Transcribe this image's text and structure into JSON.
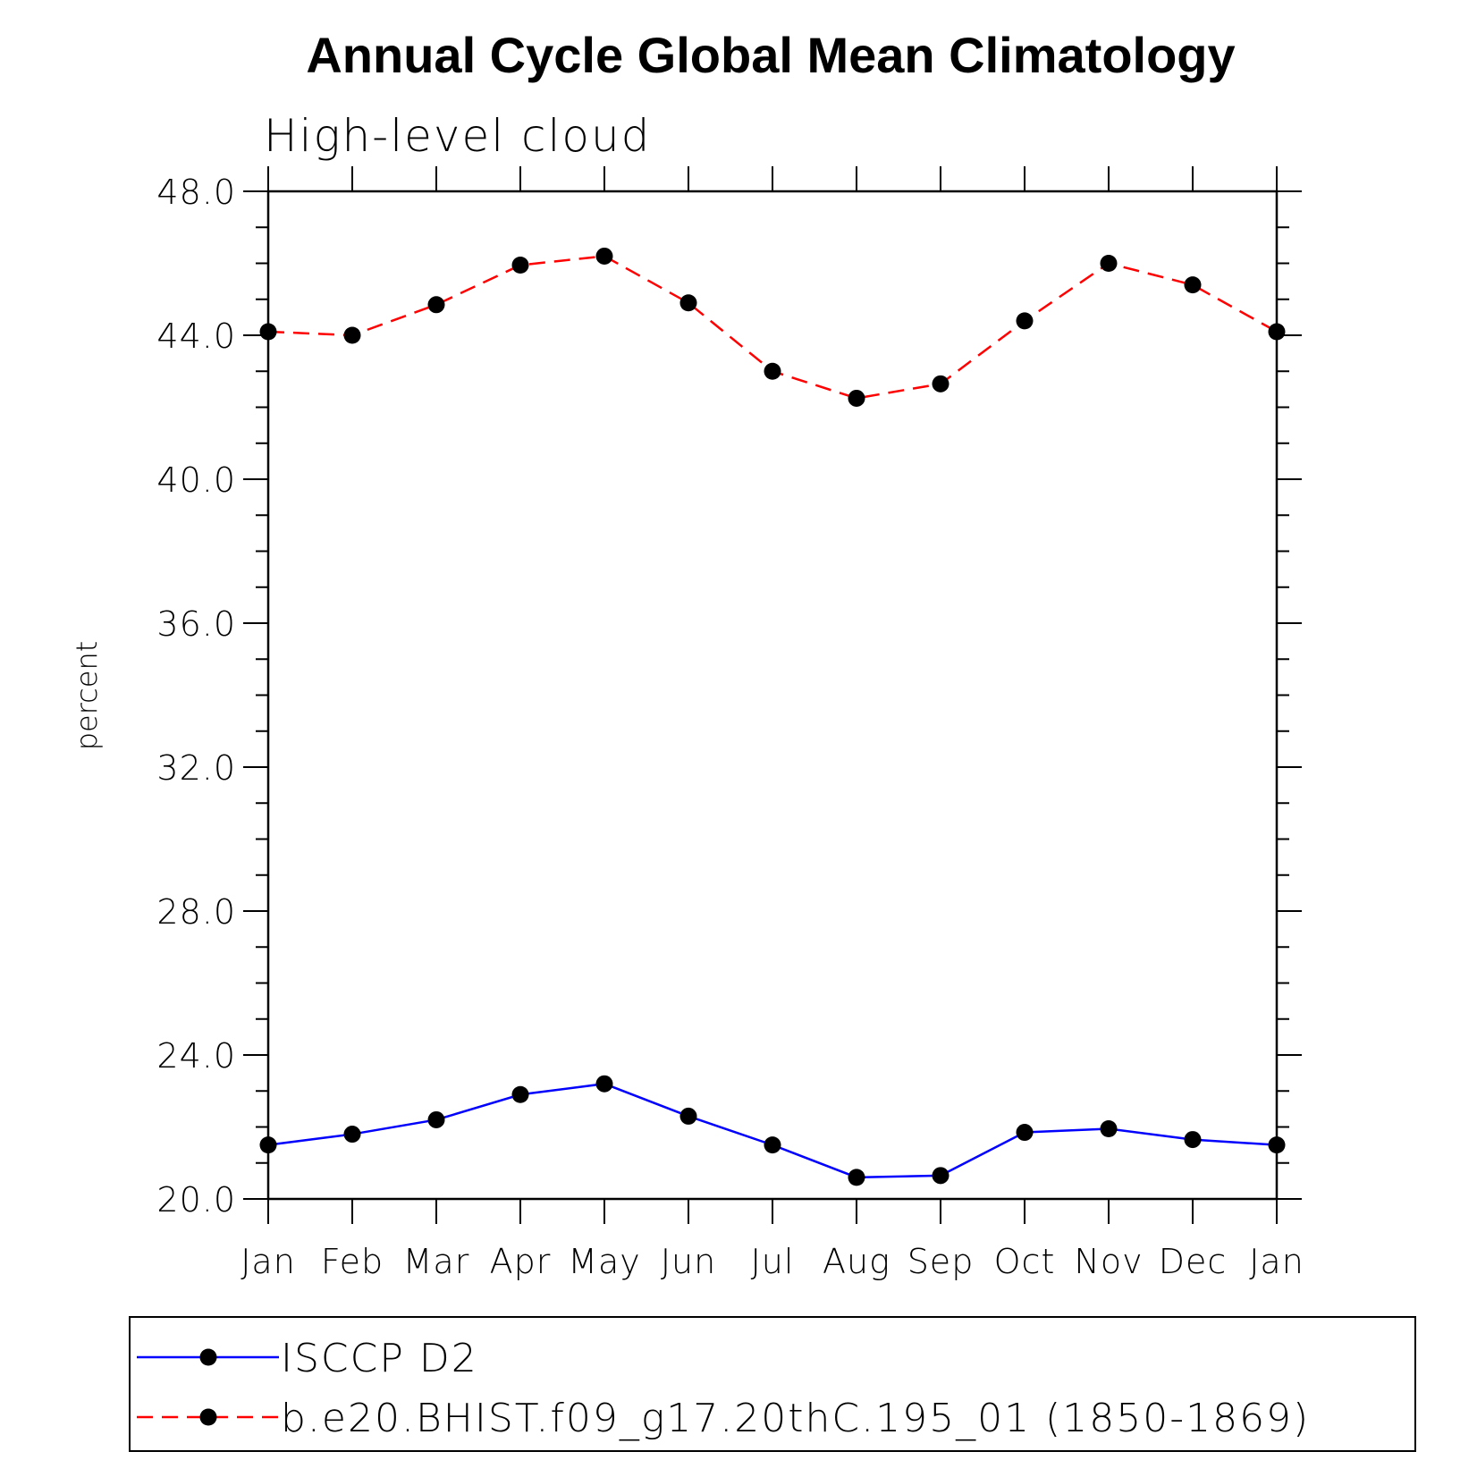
{
  "chart_data": {
    "type": "line",
    "title": "Annual Cycle Global Mean Climatology",
    "subtitle": "High-level cloud",
    "xlabel": "",
    "ylabel": "percent",
    "categories": [
      "Jan",
      "Feb",
      "Mar",
      "Apr",
      "May",
      "Jun",
      "Jul",
      "Aug",
      "Sep",
      "Oct",
      "Nov",
      "Dec",
      "Jan"
    ],
    "ylim": [
      20.0,
      48.0
    ],
    "yticks": [
      "20.0",
      "24.0",
      "28.0",
      "32.0",
      "36.0",
      "40.0",
      "44.0",
      "48.0"
    ],
    "grid": false,
    "legend_position": "bottom",
    "series": [
      {
        "name": "ISCCP D2",
        "color": "#0000ff",
        "line_style": "solid",
        "marker": "filled-circle",
        "values": [
          21.5,
          21.8,
          22.2,
          22.9,
          23.2,
          22.3,
          21.5,
          20.6,
          20.65,
          21.85,
          21.95,
          21.65,
          21.5
        ]
      },
      {
        "name": "b.e20.BHIST.f09_g17.20thC.195_01 (1850-1869)",
        "color": "#ff0000",
        "line_style": "dashed",
        "marker": "filled-circle",
        "values": [
          44.1,
          44.0,
          44.85,
          45.95,
          46.2,
          44.9,
          43.0,
          42.25,
          42.65,
          44.4,
          46.0,
          45.4,
          44.1
        ]
      }
    ]
  }
}
